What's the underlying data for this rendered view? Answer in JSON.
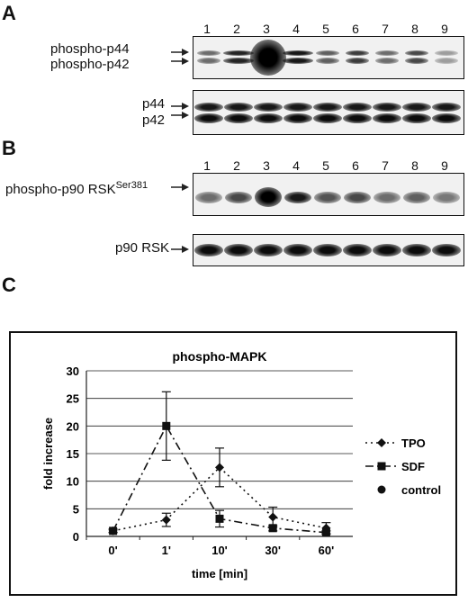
{
  "panel_a": {
    "letter": "A",
    "lanes": [
      "1",
      "2",
      "3",
      "4",
      "5",
      "6",
      "7",
      "8",
      "9"
    ],
    "label_top_1": "phospho-p44",
    "label_top_2": "phospho-p42",
    "label_bottom_1": "p44",
    "label_bottom_2": "p42"
  },
  "panel_b": {
    "letter": "B",
    "lanes": [
      "1",
      "2",
      "3",
      "4",
      "5",
      "6",
      "7",
      "8",
      "9"
    ],
    "label_top": "phospho-p90 RSK",
    "label_top_sup": "Ser381",
    "label_bottom": "p90 RSK"
  },
  "panel_c": {
    "letter": "C"
  },
  "chart_data": {
    "type": "line",
    "title": "phospho-MAPK",
    "xlabel": "time [min]",
    "ylabel": "fold increase",
    "categories": [
      "0'",
      "1'",
      "10'",
      "30'",
      "60'"
    ],
    "ylim": [
      0,
      30
    ],
    "yticks": [
      "0",
      "5",
      "10",
      "15",
      "20",
      "25",
      "30"
    ],
    "grid": true,
    "legend_position": "right",
    "series": [
      {
        "name": "TPO",
        "values": [
          1,
          3,
          12.5,
          3.5,
          1.5
        ],
        "error": [
          0.3,
          1.2,
          3.5,
          1.8,
          1.0
        ],
        "style": "dotted",
        "marker": "diamond"
      },
      {
        "name": "SDF",
        "values": [
          1,
          20,
          3.2,
          1.5,
          0.7
        ],
        "error": [
          0.3,
          6.2,
          1.5,
          0.5,
          0.3
        ],
        "style": "dashed",
        "marker": "square"
      },
      {
        "name": "control",
        "values": [
          1,
          null,
          null,
          null,
          1
        ],
        "error": [
          0,
          0,
          0,
          0,
          0
        ],
        "style": "none",
        "marker": "circle"
      }
    ]
  }
}
